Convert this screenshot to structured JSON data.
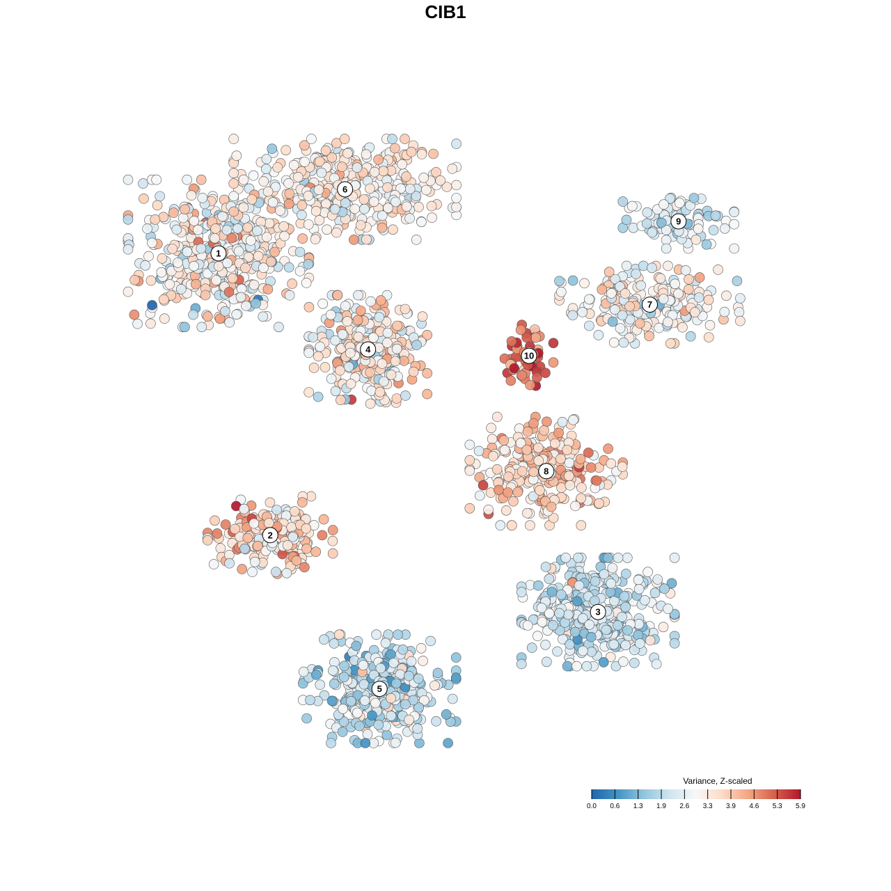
{
  "chart_data": {
    "type": "scatter",
    "title": "CIB1",
    "xlabel": "",
    "ylabel": "",
    "grid": false,
    "axes_visible": false,
    "xlim": [
      -55,
      60
    ],
    "ylim": [
      -50,
      50
    ],
    "color_scale": {
      "title": "Variance, Z-scaled",
      "ticks": [
        "0.0",
        "0.6",
        "1.3",
        "1.9",
        "2.6",
        "3.3",
        "3.9",
        "4.6",
        "5.3",
        "5.9"
      ],
      "range": [
        0.0,
        5.9
      ],
      "palette": [
        "#2166ac",
        "#4393c3",
        "#92c5de",
        "#d1e5f0",
        "#f7f7f7",
        "#fddbc7",
        "#f4a582",
        "#d6604d",
        "#b2182b"
      ],
      "placement": "bottom-right"
    },
    "clusters": [
      {
        "label": "1",
        "center": [
          -40,
          30
        ],
        "spread": [
          13,
          9.5
        ],
        "n": 430,
        "mean": 3.05,
        "sd": 0.75
      },
      {
        "label": "2",
        "center": [
          -31,
          -14
        ],
        "spread": [
          9,
          5
        ],
        "n": 170,
        "mean": 3.6,
        "sd": 0.75
      },
      {
        "label": "3",
        "center": [
          26,
          -26
        ],
        "spread": [
          11,
          7
        ],
        "n": 380,
        "mean": 2.3,
        "sd": 0.6
      },
      {
        "label": "4",
        "center": [
          -14,
          15
        ],
        "spread": [
          8.5,
          7
        ],
        "n": 260,
        "mean": 3.25,
        "sd": 0.8
      },
      {
        "label": "5",
        "center": [
          -12,
          -38
        ],
        "spread": [
          11,
          7
        ],
        "n": 320,
        "mean": 2.1,
        "sd": 0.7
      },
      {
        "label": "6",
        "center": [
          -18,
          40
        ],
        "spread": [
          16,
          6.5
        ],
        "n": 360,
        "mean": 3.25,
        "sd": 0.6
      },
      {
        "label": "7",
        "center": [
          35,
          22
        ],
        "spread": [
          13,
          5
        ],
        "n": 200,
        "mean": 2.9,
        "sd": 0.7
      },
      {
        "label": "8",
        "center": [
          17,
          -4
        ],
        "spread": [
          11,
          7
        ],
        "n": 230,
        "mean": 3.7,
        "sd": 0.65
      },
      {
        "label": "9",
        "center": [
          40,
          35
        ],
        "spread": [
          8,
          3.5
        ],
        "n": 90,
        "mean": 2.5,
        "sd": 0.6
      },
      {
        "label": "10",
        "center": [
          14,
          14
        ],
        "spread": [
          3.5,
          4
        ],
        "n": 55,
        "mean": 5.0,
        "sd": 0.6
      }
    ]
  }
}
